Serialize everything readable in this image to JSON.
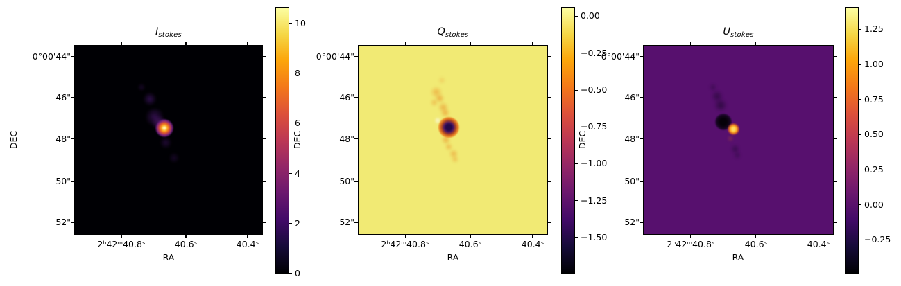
{
  "figure": {
    "background": "#ffffff",
    "colormap": "inferno",
    "colors": {
      "inferno_bottom": "#000004",
      "inferno_top": "#fcffa4",
      "i_background": "#000004",
      "q_background": "#f1ea74",
      "u_background": "#57106e"
    }
  },
  "panels": [
    {
      "title": "I",
      "title_sub": "stokes",
      "xlabel": "RA",
      "ylabel": "DEC",
      "x_ticks": [
        "2ʰ42ᵐ40.8ˢ",
        "40.6ˢ",
        "40.4ˢ"
      ],
      "y_ticks": [
        "-0°00'44\"",
        "46\"",
        "48\"",
        "50\"",
        "52\""
      ],
      "colorbar": {
        "ticks": [
          "10",
          "8",
          "6",
          "4",
          "2",
          "0"
        ]
      }
    },
    {
      "title": "Q",
      "title_sub": "stokes",
      "xlabel": "RA",
      "ylabel": "DEC",
      "x_ticks": [
        "2ʰ42ᵐ40.8ˢ",
        "40.6ˢ",
        "40.4ˢ"
      ],
      "y_ticks": [
        "-0°00'44\"",
        "46\"",
        "48\"",
        "50\"",
        "52\""
      ],
      "colorbar": {
        "ticks": [
          "0.00",
          "−0.25",
          "−0.50",
          "−0.75",
          "−1.00",
          "−1.25",
          "−1.50"
        ]
      }
    },
    {
      "title": "U",
      "title_sub": "stokes",
      "xlabel": "RA",
      "ylabel": "DEC",
      "x_ticks": [
        "2ʰ42ᵐ40.8ˢ",
        "40.6ˢ",
        "40.4ˢ"
      ],
      "y_ticks": [
        "-0°00'44\"",
        "46\"",
        "48\"",
        "50\"",
        "52\""
      ],
      "colorbar": {
        "ticks": [
          "1.25",
          "1.00",
          "0.75",
          "0.50",
          "0.25",
          "0.00",
          "−0.25"
        ]
      }
    }
  ],
  "chart_data": {
    "type": "heatmap",
    "figure_description": "Three-panel Stokes parameter sky maps (I, Q, U) sharing RA/DEC axes, inferno colormap, each with its own colorbar",
    "colormap": "inferno",
    "shared_axes": {
      "xlabel": "RA",
      "x_tick_labels": [
        "2h42m40.8s",
        "40.6s",
        "40.4s"
      ],
      "x_range_ra_seconds": [
        40.95,
        40.36
      ],
      "ylabel": "DEC",
      "y_tick_labels": [
        "-0°00'44\"",
        "46\"",
        "48\"",
        "50\"",
        "52\""
      ],
      "y_range_dec_arcsec": [
        -43.4,
        -52.7
      ],
      "grid": false
    },
    "panels": [
      {
        "title": "I_stokes",
        "colorbar_ticks": [
          0,
          2,
          4,
          6,
          8,
          10
        ],
        "value_range_est": [
          0,
          10.6
        ],
        "background_value": 0,
        "features": "Compact bright point source (peak ≈ 10.6) at approx RA 2h42m40.67s, DEC -0°00'47.5\", with faint purple diffuse emission extending to the upper-left and below"
      },
      {
        "title": "Q_stokes",
        "colorbar_ticks": [
          0.0,
          -0.25,
          -0.5,
          -0.75,
          -1.0,
          -1.25,
          -1.5
        ],
        "value_range_est": [
          -1.74,
          0.06
        ],
        "background_value": 0,
        "features": "Deep negative core (≈ -1.7, dark) at the source position surrounded by an orange ring, with a weakly negative orange filament running roughly N-S through the source"
      },
      {
        "title": "U_stokes",
        "colorbar_ticks": [
          1.25,
          1.0,
          0.75,
          0.5,
          0.25,
          0.0,
          -0.25
        ],
        "value_range_est": [
          -0.49,
          1.41
        ],
        "background_value": 0,
        "features": "Negative U dip (black, ≈ -0.49) just NW of a bright positive U peak (≈ 1.4, orange); faint dark diffuse structure extends to the upper-left and below"
      }
    ],
    "legend_position": "right colorbars"
  }
}
